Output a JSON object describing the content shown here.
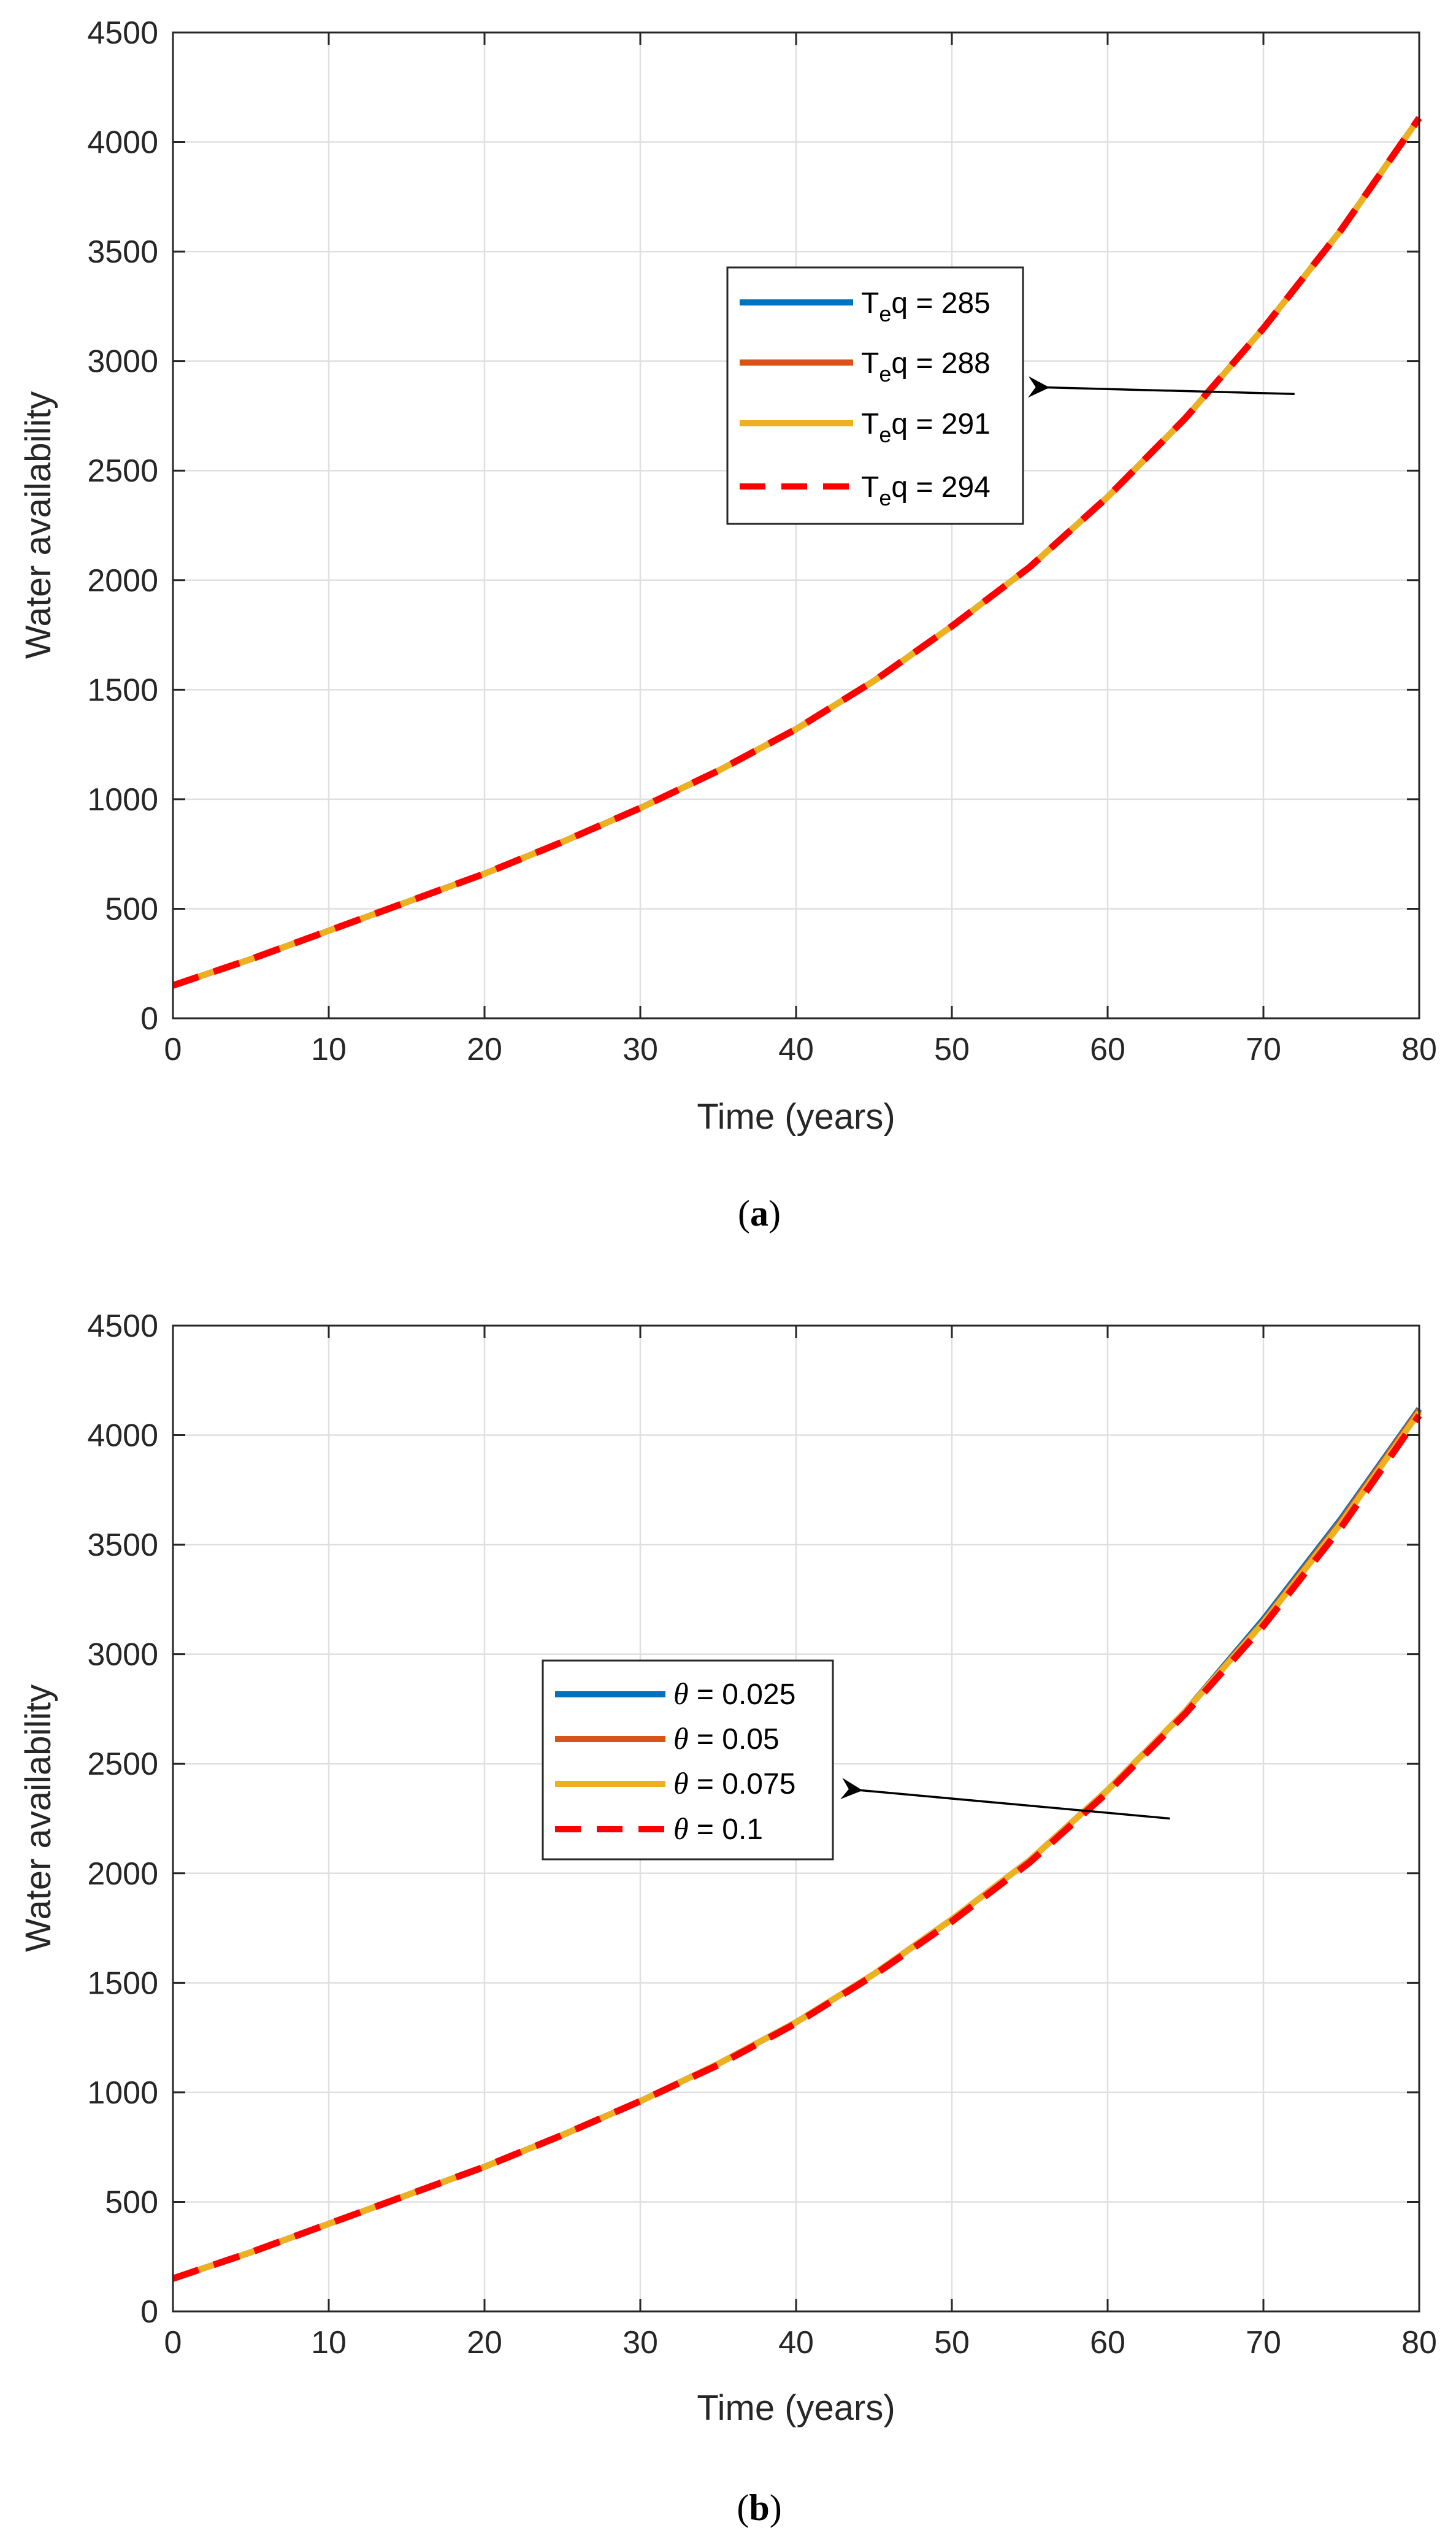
{
  "chart_data": [
    {
      "id": "a",
      "type": "line",
      "caption": {
        "open": "(",
        "letter": "a",
        "close": ")"
      },
      "xlabel": "Time (years)",
      "ylabel": "Water availability",
      "xlim": [
        0,
        80
      ],
      "ylim": [
        0,
        4500
      ],
      "xticks": [
        0,
        10,
        20,
        30,
        40,
        50,
        60,
        70,
        80
      ],
      "yticks": [
        0,
        500,
        1000,
        1500,
        2000,
        2500,
        3000,
        3500,
        4000,
        4500
      ],
      "grid": true,
      "legend_position": "center",
      "series": [
        {
          "name": "Teq = 285",
          "label_main": "T",
          "label_sub": "e",
          "label_rest": "q = 285",
          "color": "#0072BD",
          "style": "solid",
          "x": [
            0,
            5,
            10,
            15,
            20,
            25,
            30,
            35,
            40,
            45,
            50,
            55,
            60,
            65,
            70,
            75,
            80
          ],
          "values": [
            150,
            270,
            400,
            530,
            660,
            805,
            960,
            1130,
            1320,
            1540,
            1790,
            2060,
            2380,
            2740,
            3150,
            3600,
            4110
          ]
        },
        {
          "name": "Teq = 288",
          "label_main": "T",
          "label_sub": "e",
          "label_rest": "q = 288",
          "color": "#D95319",
          "style": "solid",
          "x": [
            0,
            5,
            10,
            15,
            20,
            25,
            30,
            35,
            40,
            45,
            50,
            55,
            60,
            65,
            70,
            75,
            80
          ],
          "values": [
            150,
            270,
            400,
            530,
            660,
            805,
            960,
            1130,
            1320,
            1540,
            1790,
            2060,
            2380,
            2740,
            3150,
            3600,
            4110
          ]
        },
        {
          "name": "Teq = 291",
          "label_main": "T",
          "label_sub": "e",
          "label_rest": "q = 291",
          "color": "#EDB120",
          "style": "solid",
          "x": [
            0,
            5,
            10,
            15,
            20,
            25,
            30,
            35,
            40,
            45,
            50,
            55,
            60,
            65,
            70,
            75,
            80
          ],
          "values": [
            150,
            270,
            400,
            530,
            660,
            805,
            960,
            1130,
            1320,
            1540,
            1790,
            2060,
            2380,
            2740,
            3150,
            3600,
            4110
          ]
        },
        {
          "name": "Teq = 294",
          "label_main": "T",
          "label_sub": "e",
          "label_rest": "q = 294",
          "color": "#FF0000",
          "style": "dashed",
          "x": [
            0,
            5,
            10,
            15,
            20,
            25,
            30,
            35,
            40,
            45,
            50,
            55,
            60,
            65,
            70,
            75,
            80
          ],
          "values": [
            150,
            270,
            400,
            530,
            660,
            805,
            960,
            1130,
            1320,
            1540,
            1790,
            2060,
            2380,
            2740,
            3150,
            3600,
            4110
          ]
        }
      ],
      "annotation": {
        "type": "arrow",
        "from": [
          72,
          2850
        ],
        "to": [
          56,
          2880
        ]
      }
    },
    {
      "id": "b",
      "type": "line",
      "caption": {
        "open": "(",
        "letter": "b",
        "close": ")"
      },
      "xlabel": "Time (years)",
      "ylabel": "Water availability",
      "xlim": [
        0,
        80
      ],
      "ylim": [
        0,
        4500
      ],
      "xticks": [
        0,
        10,
        20,
        30,
        40,
        50,
        60,
        70,
        80
      ],
      "yticks": [
        0,
        500,
        1000,
        1500,
        2000,
        2500,
        3000,
        3500,
        4000,
        4500
      ],
      "grid": true,
      "legend_position": "center-left",
      "series": [
        {
          "name": "θ = 0.025",
          "label_main": "θ",
          "label_rest": " = 0.025",
          "color": "#0072BD",
          "style": "solid",
          "x": [
            0,
            5,
            10,
            15,
            20,
            25,
            30,
            35,
            40,
            45,
            50,
            55,
            60,
            65,
            70,
            75,
            80
          ],
          "values": [
            150,
            270,
            400,
            530,
            660,
            805,
            960,
            1130,
            1320,
            1540,
            1790,
            2060,
            2380,
            2740,
            3160,
            3620,
            4120
          ]
        },
        {
          "name": "θ = 0.05",
          "label_main": "θ",
          "label_rest": " = 0.05",
          "color": "#D95319",
          "style": "solid",
          "x": [
            0,
            5,
            10,
            15,
            20,
            25,
            30,
            35,
            40,
            45,
            50,
            55,
            60,
            65,
            70,
            75,
            80
          ],
          "values": [
            150,
            270,
            400,
            530,
            660,
            805,
            960,
            1130,
            1320,
            1540,
            1790,
            2060,
            2380,
            2740,
            3150,
            3610,
            4115
          ]
        },
        {
          "name": "θ = 0.075",
          "label_main": "θ",
          "label_rest": " = 0.075",
          "color": "#EDB120",
          "style": "solid",
          "x": [
            0,
            5,
            10,
            15,
            20,
            25,
            30,
            35,
            40,
            45,
            50,
            55,
            60,
            65,
            70,
            75,
            80
          ],
          "values": [
            150,
            270,
            400,
            530,
            660,
            805,
            960,
            1130,
            1320,
            1540,
            1790,
            2060,
            2380,
            2740,
            3145,
            3600,
            4105
          ]
        },
        {
          "name": "θ = 0.1",
          "label_main": "θ",
          "label_rest": " = 0.1",
          "color": "#FF0000",
          "style": "dashed",
          "x": [
            0,
            5,
            10,
            15,
            20,
            25,
            30,
            35,
            40,
            45,
            50,
            55,
            60,
            65,
            70,
            75,
            80
          ],
          "values": [
            150,
            270,
            400,
            530,
            660,
            805,
            960,
            1125,
            1315,
            1535,
            1780,
            2050,
            2370,
            2730,
            3130,
            3580,
            4090
          ]
        }
      ],
      "annotation": {
        "type": "arrow",
        "from": [
          64,
          2250
        ],
        "to": [
          44,
          2380
        ]
      }
    }
  ]
}
